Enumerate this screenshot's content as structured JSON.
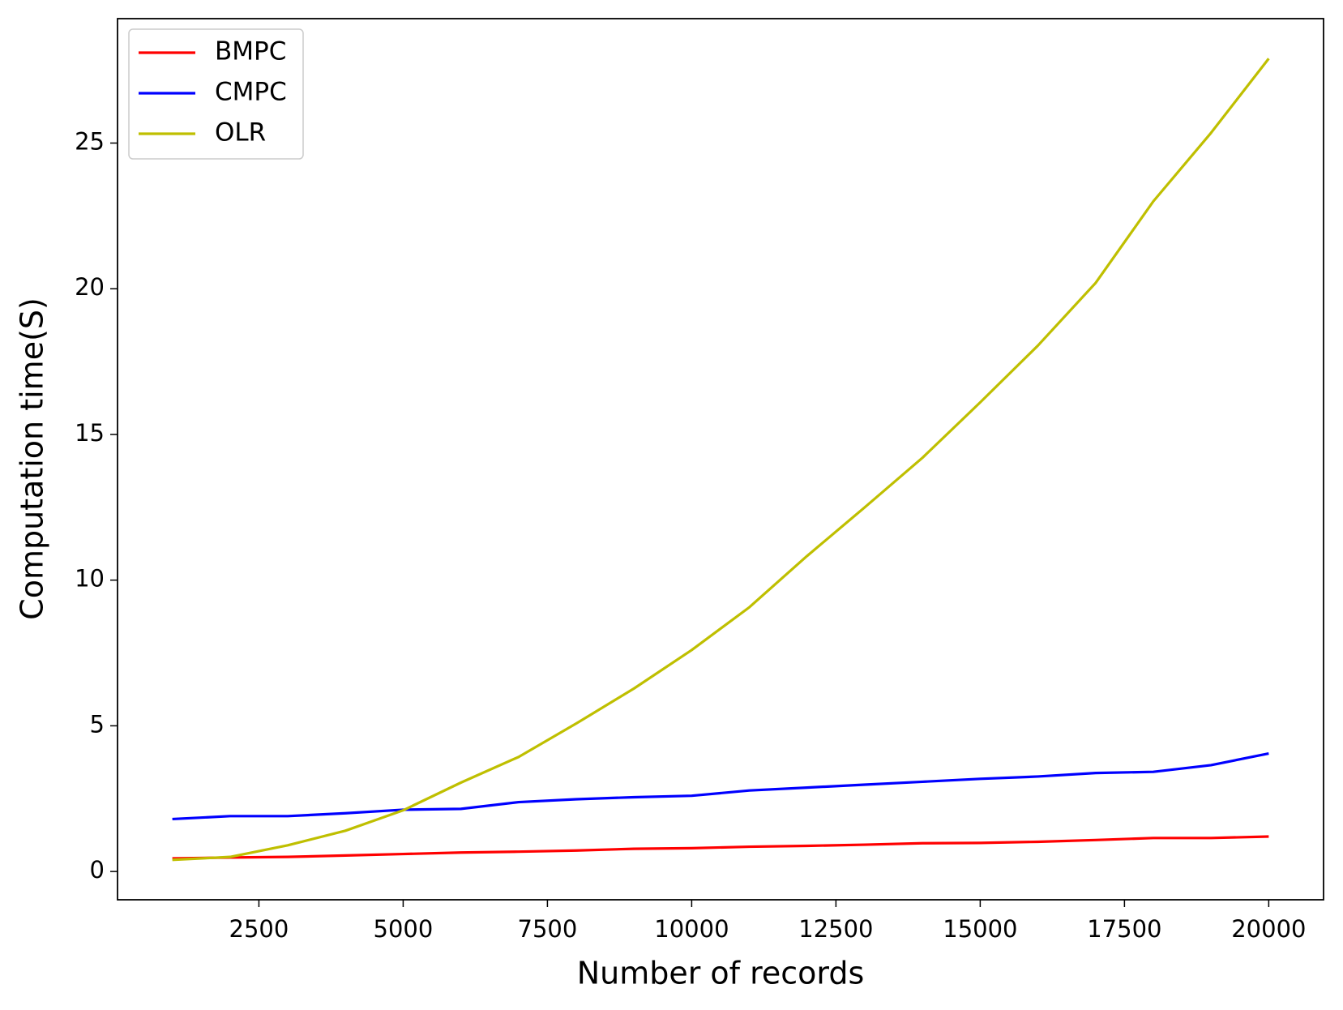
{
  "chart_data": {
    "type": "line",
    "x_label": "Number of records",
    "y_label": "Computation time(S)",
    "x": [
      1000,
      2000,
      3000,
      4000,
      5000,
      6000,
      7000,
      8000,
      9000,
      10000,
      11000,
      12000,
      13000,
      14000,
      15000,
      16000,
      17000,
      18000,
      19000,
      20000
    ],
    "series": [
      {
        "name": "BMPC",
        "color": "#ff0000",
        "values": [
          0.45,
          0.48,
          0.5,
          0.55,
          0.6,
          0.65,
          0.68,
          0.72,
          0.78,
          0.8,
          0.85,
          0.88,
          0.92,
          0.97,
          0.98,
          1.02,
          1.08,
          1.15,
          1.15,
          1.2
        ]
      },
      {
        "name": "CMPC",
        "color": "#0000ff",
        "values": [
          1.8,
          1.9,
          1.9,
          2.0,
          2.12,
          2.15,
          2.38,
          2.48,
          2.55,
          2.6,
          2.78,
          2.88,
          2.98,
          3.08,
          3.18,
          3.26,
          3.38,
          3.42,
          3.65,
          4.05
        ]
      },
      {
        "name": "OLR",
        "color": "#bfbf00",
        "values": [
          0.4,
          0.5,
          0.9,
          1.4,
          2.1,
          3.05,
          3.93,
          5.08,
          6.28,
          7.6,
          9.07,
          10.83,
          12.5,
          14.2,
          16.1,
          18.05,
          20.2,
          23.0,
          25.35,
          27.9
        ]
      }
    ],
    "xlim": [
      50,
      20950
    ],
    "ylim": [
      -0.97,
      29.27
    ],
    "xticks": [
      2500,
      5000,
      7500,
      10000,
      12500,
      15000,
      17500,
      20000
    ],
    "yticks": [
      0,
      5,
      10,
      15,
      20,
      25
    ],
    "legend": "upper left",
    "grid": false
  }
}
